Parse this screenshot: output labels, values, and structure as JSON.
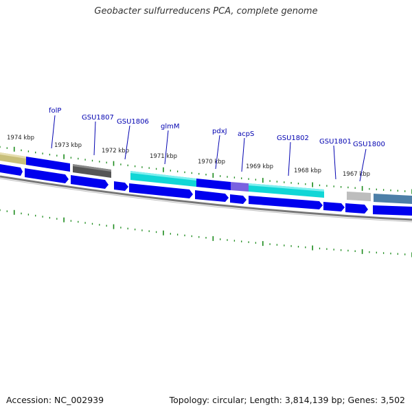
{
  "title": "Geobacter sulfurreducens PCA, complete genome",
  "footer": {
    "accession": "Accession: NC_002939",
    "summary": "Topology: circular; Length: 3,814,139 bp; Genes: 3,502"
  },
  "colors": {
    "gene_blue": "#0000ee",
    "gene_blue_light": "#4f6cff",
    "label_blue": "#0000b0",
    "tick_green": "#1a8a1a",
    "backbone": "#777777",
    "olive": "#c8bf7a",
    "dark_gray": "#555555",
    "cyan": "#11d6d6",
    "purple": "#7a62e0",
    "light_gray": "#bdbdbd",
    "steel": "#4d7fa8"
  },
  "kbp_labels": [
    "1974 kbp",
    "1973 kbp",
    "1972 kbp",
    "1971 kbp",
    "1970 kbp",
    "1969 kbp",
    "1968 kbp",
    "1967 kbp"
  ],
  "gene_labels": [
    "folP",
    "GSU1807",
    "GSU1806",
    "glmM",
    "pdxJ",
    "acpS",
    "GSU1802",
    "GSU1801",
    "GSU1800"
  ]
}
